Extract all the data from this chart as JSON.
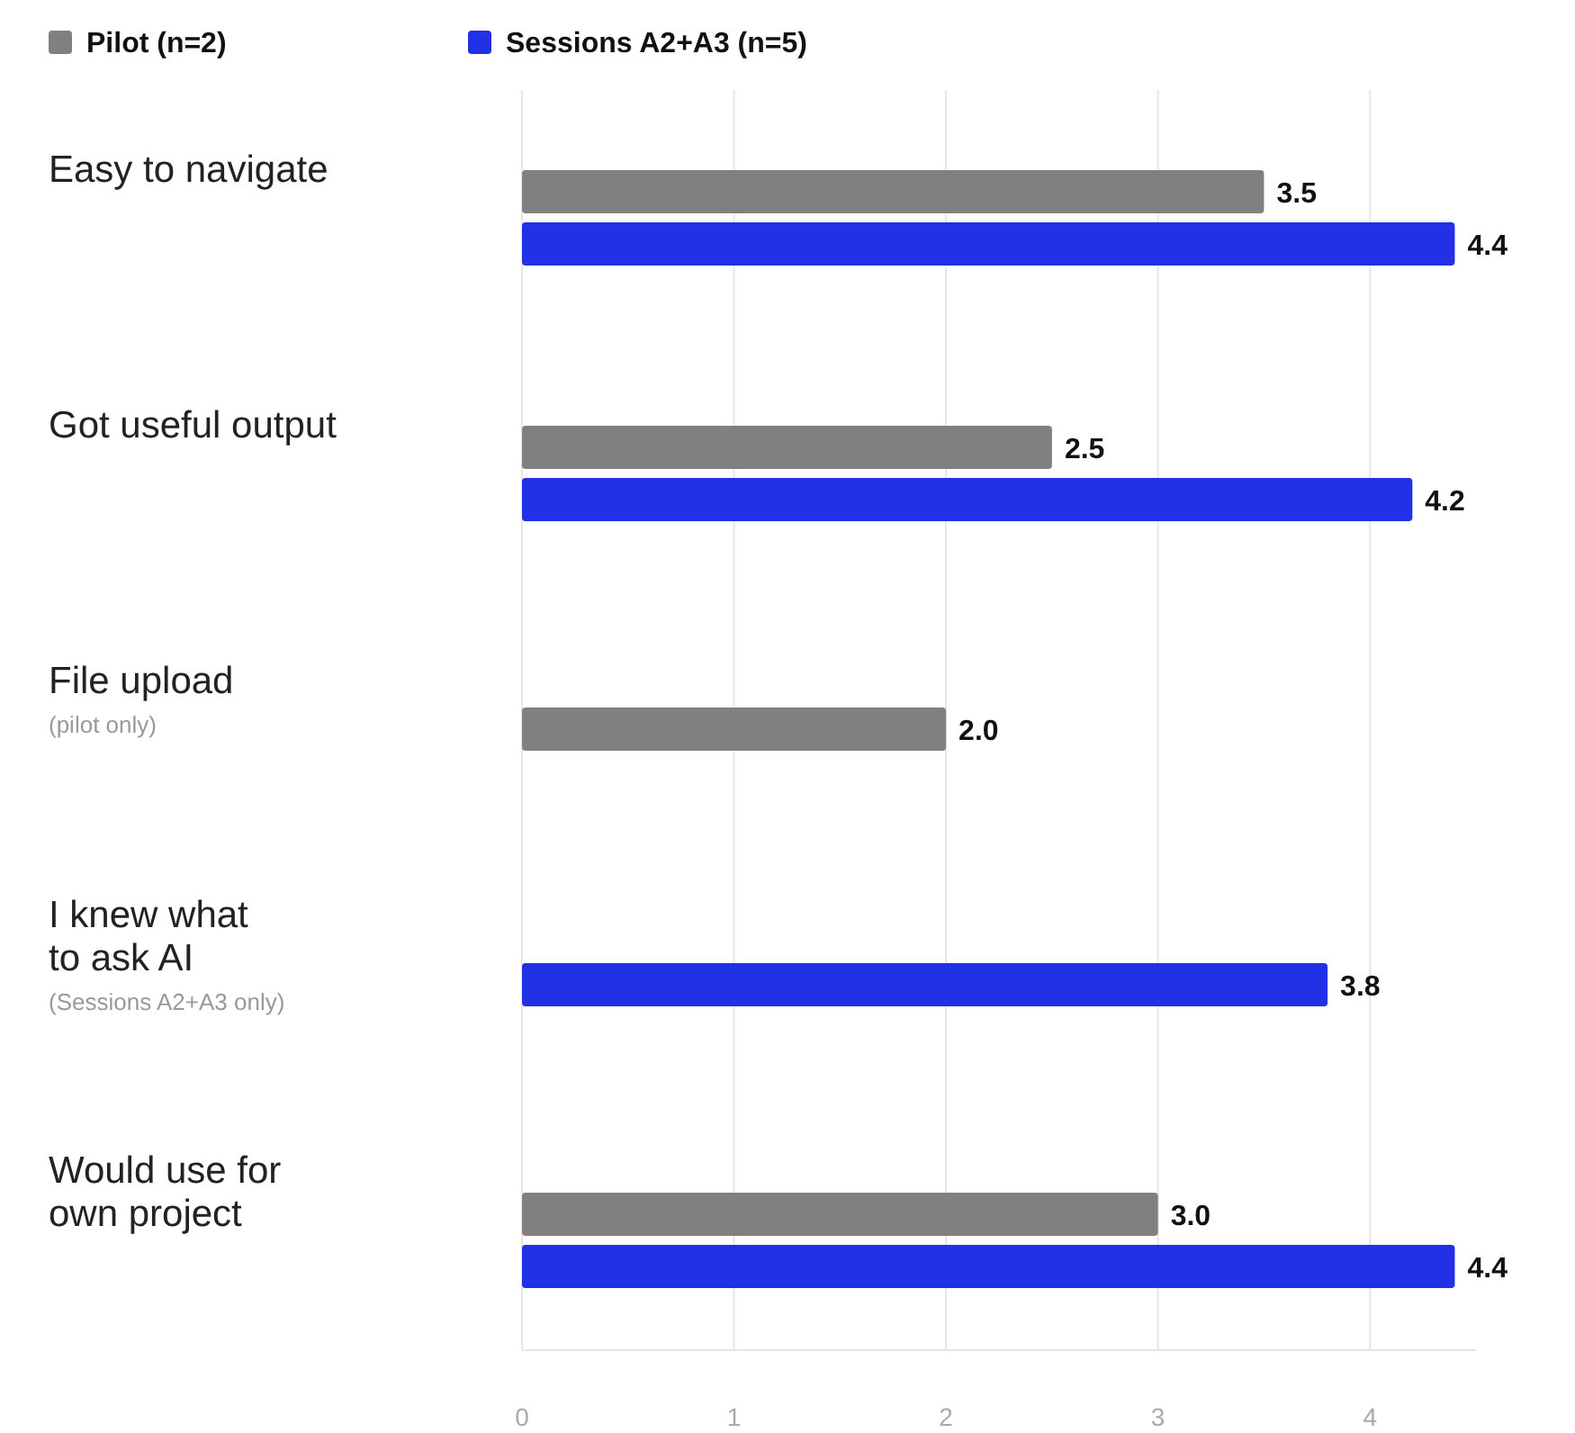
{
  "chart_data": {
    "type": "bar",
    "orientation": "horizontal",
    "categories": [
      "Easy to navigate",
      "Got useful output",
      "File upload",
      "I knew what\nto ask AI",
      "Would use for\nown project"
    ],
    "series": [
      {
        "name": "Pilot (n=2)",
        "color": "#808080",
        "values": [
          3.5,
          2.5,
          2.0,
          null,
          3.0
        ],
        "value_labels": [
          "3.5",
          "2.5",
          "2.0",
          null,
          "3.0"
        ]
      },
      {
        "name": "Sessions A2+A3 (n=5)",
        "color": "#2230e6",
        "values": [
          4.4,
          4.2,
          null,
          3.8,
          4.4
        ],
        "value_labels": [
          "4.4",
          "4.2",
          null,
          "3.8",
          "4.4"
        ]
      }
    ],
    "annotations": [
      "(pilot only)",
      "(Sessions A2+A3 only)"
    ],
    "xlim": [
      0,
      4.5
    ],
    "xticks": [
      0,
      1,
      2,
      3,
      4
    ],
    "grid": "x",
    "legend": "top left"
  }
}
